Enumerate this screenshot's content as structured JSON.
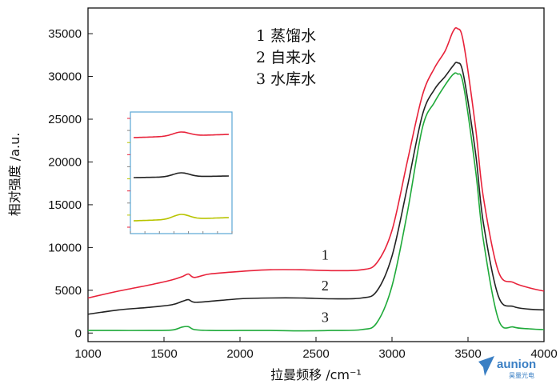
{
  "chart_data": {
    "type": "line",
    "title": "",
    "xlabel": "拉曼频移 /cm⁻¹",
    "ylabel": "相对强度 /a.u.",
    "xlim": [
      1000,
      4000
    ],
    "ylim": [
      -1000,
      38000
    ],
    "xticks": [
      1000,
      1500,
      2000,
      2500,
      3000,
      3500,
      4000
    ],
    "yticks": [
      0,
      5000,
      10000,
      15000,
      20000,
      25000,
      30000,
      35000
    ],
    "grid": false,
    "legend": {
      "position": "top-center",
      "entries": [
        "1 蒸馏水",
        "2 自来水",
        "3 水库水"
      ]
    },
    "series": [
      {
        "name": "1",
        "color": "#e8223a",
        "x": [
          1000,
          1200,
          1400,
          1550,
          1620,
          1660,
          1700,
          1800,
          2000,
          2200,
          2400,
          2600,
          2800,
          2900,
          3000,
          3100,
          3200,
          3280,
          3350,
          3400,
          3430,
          3470,
          3550,
          3600,
          3700,
          3800,
          3900,
          4000
        ],
        "values": [
          4100,
          4900,
          5600,
          6200,
          6600,
          6900,
          6500,
          6900,
          7200,
          7400,
          7400,
          7300,
          7400,
          8200,
          12000,
          20000,
          27800,
          31000,
          33000,
          35200,
          35600,
          34000,
          24000,
          16000,
          7200,
          5900,
          5300,
          4900
        ]
      },
      {
        "name": "2",
        "color": "#222222",
        "x": [
          1000,
          1200,
          1400,
          1550,
          1620,
          1660,
          1700,
          1800,
          2000,
          2200,
          2400,
          2600,
          2800,
          2900,
          3000,
          3100,
          3200,
          3280,
          3350,
          3400,
          3430,
          3470,
          3550,
          3600,
          3700,
          3800,
          3900,
          4000
        ],
        "values": [
          2200,
          2700,
          3000,
          3300,
          3700,
          3900,
          3600,
          3700,
          4000,
          4100,
          4100,
          4000,
          4100,
          4900,
          9000,
          17000,
          25500,
          28500,
          30000,
          31200,
          31600,
          30200,
          21000,
          13000,
          4300,
          3100,
          2800,
          2700
        ]
      },
      {
        "name": "3",
        "color": "#1faa3a",
        "x": [
          1000,
          1200,
          1400,
          1550,
          1620,
          1660,
          1700,
          1800,
          2000,
          2200,
          2400,
          2600,
          2800,
          2900,
          3000,
          3100,
          3200,
          3280,
          3350,
          3400,
          3430,
          3470,
          3550,
          3600,
          3700,
          3800,
          3900,
          4000
        ],
        "values": [
          300,
          300,
          300,
          350,
          700,
          750,
          400,
          300,
          300,
          300,
          250,
          300,
          400,
          1200,
          5500,
          14000,
          24000,
          27000,
          29000,
          30200,
          30300,
          29000,
          19000,
          11000,
          1600,
          700,
          500,
          400
        ]
      }
    ],
    "curve_labels": [
      {
        "text": "1",
        "x": 2560,
        "y": 8600
      },
      {
        "text": "2",
        "x": 2560,
        "y": 5000
      },
      {
        "text": "3",
        "x": 2560,
        "y": 1300
      }
    ],
    "inset": {
      "series_colors": [
        "#e8223a",
        "#222222",
        "#b8c400"
      ]
    }
  },
  "watermark": {
    "brand": "aunion",
    "sub": "昊量光电"
  }
}
